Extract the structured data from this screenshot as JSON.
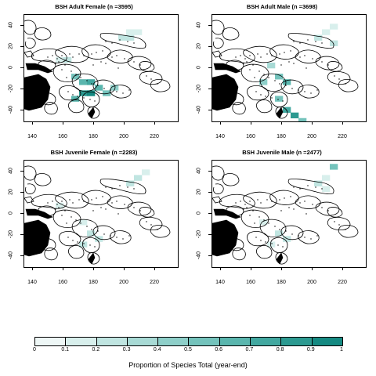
{
  "panels": [
    {
      "title": "BSH Adult Female (n =3595)",
      "pattern": "adultFemale"
    },
    {
      "title": "BSH Adult Male (n =3698)",
      "pattern": "adultMale"
    },
    {
      "title": "BSH Juvenile Female (n =2283)",
      "pattern": "juvFemale"
    },
    {
      "title": "BSH Juvenile Male (n =2477)",
      "pattern": "juvMale"
    }
  ],
  "x_ticks": [
    "140",
    "160",
    "180",
    "200",
    "220"
  ],
  "y_ticks": [
    "40",
    "20",
    "0",
    "-20",
    "-40"
  ],
  "legend": {
    "title": "Proportion of Species Total (year-end)",
    "ticks": [
      "0",
      "0.1",
      "0.2",
      "0.3",
      "0.4",
      "0.5",
      "0.6",
      "0.7",
      "0.8",
      "0.9",
      "1"
    ],
    "colors": [
      "#eef7f6",
      "#d8efec",
      "#c0e5e1",
      "#a8dad5",
      "#8ecfc9",
      "#74c3bc",
      "#5ab6ae",
      "#42a8a0",
      "#2c9a91",
      "#158a82"
    ]
  },
  "colors": {
    "land": "#000000",
    "outline": "#000000",
    "frame": "#000000"
  },
  "chart_data": [
    {
      "type": "heatmap",
      "title": "BSH Adult Female (n =3595)",
      "xlim": [
        130,
        228
      ],
      "ylim": [
        -48,
        48
      ],
      "cells": [
        {
          "x": 190,
          "y": 30,
          "v": 0.2
        },
        {
          "x": 195,
          "y": 30,
          "v": 0.25
        },
        {
          "x": 200,
          "y": 35,
          "v": 0.1
        },
        {
          "x": 195,
          "y": 35,
          "v": 0.15
        },
        {
          "x": 150,
          "y": 10,
          "v": 0.15
        },
        {
          "x": 155,
          "y": 10,
          "v": 0.2
        },
        {
          "x": 160,
          "y": -5,
          "v": 0.5
        },
        {
          "x": 165,
          "y": -10,
          "v": 0.6
        },
        {
          "x": 170,
          "y": -10,
          "v": 0.7
        },
        {
          "x": 165,
          "y": -20,
          "v": 0.8
        },
        {
          "x": 170,
          "y": -20,
          "v": 0.9
        },
        {
          "x": 175,
          "y": -15,
          "v": 0.6
        },
        {
          "x": 180,
          "y": -20,
          "v": 0.5
        },
        {
          "x": 185,
          "y": -15,
          "v": 0.4
        },
        {
          "x": 160,
          "y": -25,
          "v": 0.6
        }
      ]
    },
    {
      "type": "heatmap",
      "title": "BSH Adult Male (n =3698)",
      "xlim": [
        130,
        228
      ],
      "ylim": [
        -48,
        48
      ],
      "cells": [
        {
          "x": 195,
          "y": 30,
          "v": 0.2
        },
        {
          "x": 200,
          "y": 35,
          "v": 0.15
        },
        {
          "x": 205,
          "y": 40,
          "v": 0.1
        },
        {
          "x": 205,
          "y": 25,
          "v": 0.2
        },
        {
          "x": 165,
          "y": 5,
          "v": 0.3
        },
        {
          "x": 170,
          "y": -5,
          "v": 0.5
        },
        {
          "x": 175,
          "y": -10,
          "v": 0.6
        },
        {
          "x": 160,
          "y": -10,
          "v": 0.4
        },
        {
          "x": 170,
          "y": -25,
          "v": 0.5
        },
        {
          "x": 175,
          "y": -35,
          "v": 0.7
        },
        {
          "x": 180,
          "y": -40,
          "v": 0.8
        },
        {
          "x": 185,
          "y": -45,
          "v": 0.5
        }
      ]
    },
    {
      "type": "heatmap",
      "title": "BSH Juvenile Female (n =2283)",
      "xlim": [
        130,
        228
      ],
      "ylim": [
        -48,
        48
      ],
      "cells": [
        {
          "x": 195,
          "y": 30,
          "v": 0.2
        },
        {
          "x": 200,
          "y": 35,
          "v": 0.2
        },
        {
          "x": 205,
          "y": 40,
          "v": 0.15
        },
        {
          "x": 150,
          "y": 10,
          "v": 0.15
        },
        {
          "x": 165,
          "y": -5,
          "v": 0.15
        },
        {
          "x": 170,
          "y": -15,
          "v": 0.2
        },
        {
          "x": 175,
          "y": -20,
          "v": 0.25
        },
        {
          "x": 165,
          "y": -25,
          "v": 0.2
        }
      ]
    },
    {
      "type": "heatmap",
      "title": "BSH Juvenile Male (n =2477)",
      "xlim": [
        130,
        228
      ],
      "ylim": [
        -48,
        48
      ],
      "cells": [
        {
          "x": 195,
          "y": 30,
          "v": 0.2
        },
        {
          "x": 200,
          "y": 35,
          "v": 0.15
        },
        {
          "x": 205,
          "y": 45,
          "v": 0.5
        },
        {
          "x": 200,
          "y": 25,
          "v": 0.15
        },
        {
          "x": 160,
          "y": -5,
          "v": 0.15
        },
        {
          "x": 170,
          "y": -15,
          "v": 0.2
        },
        {
          "x": 175,
          "y": -20,
          "v": 0.2
        },
        {
          "x": 165,
          "y": -25,
          "v": 0.15
        }
      ]
    }
  ]
}
